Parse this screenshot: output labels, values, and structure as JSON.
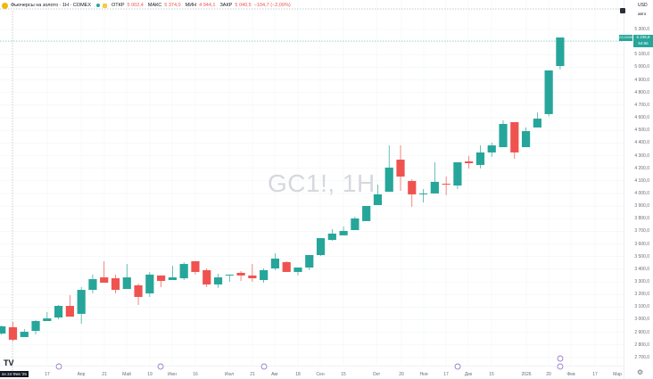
{
  "header": {
    "title": "Фьючерсы на золото · 1Н · COMEX",
    "ohlc": [
      {
        "key": "ОТКР",
        "value": "5 002,4"
      },
      {
        "key": "МАКС",
        "value": "5 374,0"
      },
      {
        "key": "МИН",
        "value": "4 944,1"
      },
      {
        "key": "ЗАКР",
        "value": "5 040,5"
      }
    ],
    "change": "−104,7 (−2,09%)"
  },
  "watermark": "GC1!, 1H",
  "price_scale": {
    "currency": "USD",
    "mode": "авто"
  },
  "last_price": {
    "value": "5 236,8",
    "countdown": "54:56",
    "symbol": "GCJ2026"
  },
  "cursor_date": "пн 24 Фев '25",
  "colors": {
    "up": "#26a69a",
    "down": "#ef5350",
    "event": "#7e57c2"
  },
  "chart_data": {
    "type": "candlestick",
    "interval": "1 week",
    "x_start": "2025-02-17",
    "ylim": [
      2650,
      5400
    ],
    "grid": true,
    "y_ticks": [
      "5 300,0",
      "5 100,0",
      "5 000,0",
      "4 900,0",
      "4 800,0",
      "4 700,0",
      "4 600,0",
      "4 500,0",
      "4 400,0",
      "4 300,0",
      "4 200,0",
      "4 100,0",
      "4 000,0",
      "3 900,0",
      "3 800,0",
      "3 700,0",
      "3 600,0",
      "3 500,0",
      "3 400,0",
      "3 300,0",
      "3 200,0",
      "3 100,0",
      "3 000,0",
      "2 900,0",
      "2 800,0",
      "2 700,0"
    ],
    "x_ticks": [
      "17",
      "Апр",
      "21",
      "Май",
      "19",
      "Июн",
      "16",
      "Июл",
      "21",
      "Авг",
      "18",
      "Сен",
      "15",
      "Окт",
      "20",
      "Ноя",
      "17",
      "Дек",
      "15",
      "2026",
      "20",
      "Фев",
      "17",
      "Мар"
    ],
    "candles": [
      [
        2890,
        2955,
        2880,
        2947
      ],
      [
        2940,
        2982,
        2827,
        2841
      ],
      [
        2862,
        2926,
        2862,
        2904
      ],
      [
        2911,
        2996,
        2883,
        2989
      ],
      [
        2989,
        3060,
        2989,
        3010
      ],
      [
        3017,
        3116,
        3003,
        3109
      ],
      [
        3109,
        3194,
        3024,
        3024
      ],
      [
        3046,
        3258,
        2968,
        3236
      ],
      [
        3236,
        3357,
        3208,
        3321
      ],
      [
        3335,
        3463,
        3293,
        3293
      ],
      [
        3328,
        3357,
        3208,
        3236
      ],
      [
        3243,
        3441,
        3243,
        3335
      ],
      [
        3272,
        3286,
        3116,
        3180
      ],
      [
        3208,
        3378,
        3180,
        3357
      ],
      [
        3350,
        3350,
        3258,
        3307
      ],
      [
        3314,
        3427,
        3314,
        3335
      ],
      [
        3328,
        3456,
        3314,
        3441
      ],
      [
        3463,
        3463,
        3357,
        3378
      ],
      [
        3392,
        3406,
        3258,
        3279
      ],
      [
        3279,
        3364,
        3251,
        3335
      ],
      [
        3350,
        3357,
        3300,
        3357
      ],
      [
        3371,
        3385,
        3307,
        3350
      ],
      [
        3350,
        3441,
        3300,
        3328
      ],
      [
        3314,
        3406,
        3293,
        3392
      ],
      [
        3406,
        3526,
        3392,
        3484
      ],
      [
        3456,
        3463,
        3378,
        3378
      ],
      [
        3378,
        3413,
        3350,
        3413
      ],
      [
        3413,
        3512,
        3392,
        3512
      ],
      [
        3512,
        3646,
        3505,
        3646
      ],
      [
        3632,
        3717,
        3625,
        3682
      ],
      [
        3668,
        3738,
        3668,
        3703
      ],
      [
        3710,
        3816,
        3710,
        3802
      ],
      [
        3781,
        3901,
        3781,
        3901
      ],
      [
        3908,
        4070,
        3908,
        3993
      ],
      [
        4014,
        4381,
        4014,
        4205
      ],
      [
        4268,
        4381,
        4021,
        4134
      ],
      [
        4099,
        4113,
        3894,
        3993
      ],
      [
        3993,
        4035,
        3929,
        4000
      ],
      [
        4000,
        4247,
        4000,
        4092
      ],
      [
        4077,
        4134,
        3986,
        4070
      ],
      [
        4063,
        4247,
        4035,
        4247
      ],
      [
        4254,
        4297,
        4198,
        4240
      ],
      [
        4226,
        4381,
        4198,
        4325
      ],
      [
        4325,
        4403,
        4290,
        4381
      ],
      [
        4367,
        4579,
        4367,
        4551
      ],
      [
        4565,
        4565,
        4275,
        4325
      ],
      [
        4367,
        4523,
        4367,
        4494
      ],
      [
        4523,
        4643,
        4523,
        4593
      ],
      [
        4629,
        4975,
        4610,
        4975
      ],
      [
        5010,
        5236,
        4982,
        5236
      ]
    ],
    "candle_fields": [
      "open",
      "high",
      "low",
      "close"
    ],
    "events": [
      {
        "label": "E"
      },
      {
        "label": "E"
      },
      {
        "label": "E"
      },
      {
        "label": "E"
      },
      {
        "label": "E"
      },
      {
        "label": "D"
      }
    ]
  }
}
